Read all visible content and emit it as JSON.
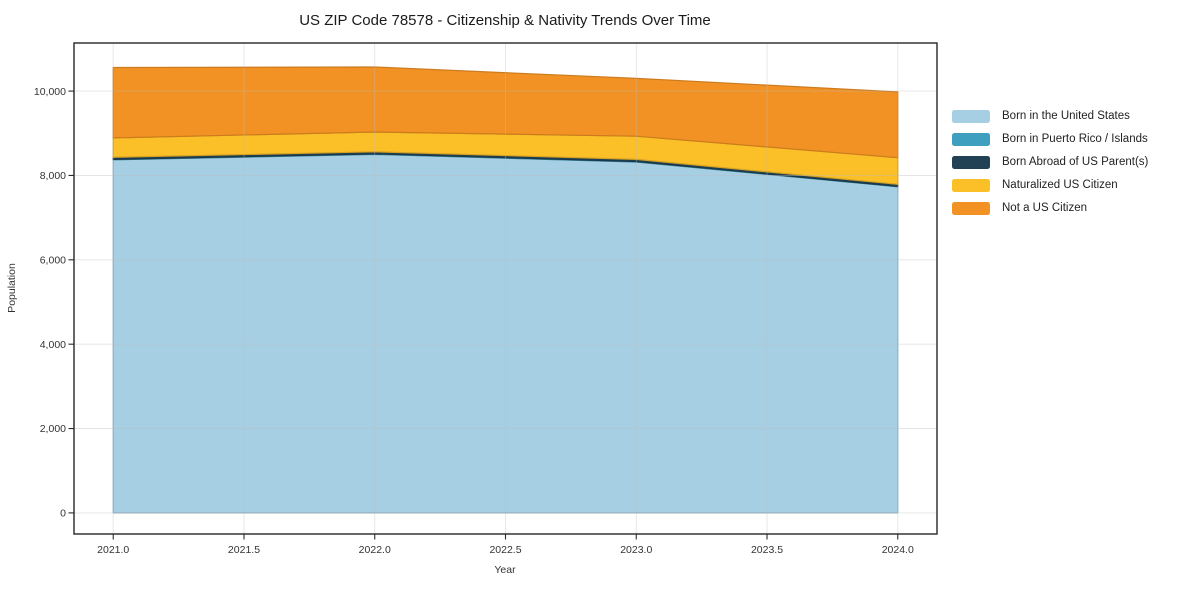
{
  "chart_data": {
    "type": "area",
    "stacked": true,
    "title": "US ZIP Code 78578 - Citizenship & Nativity Trends Over Time",
    "xlabel": "Year",
    "ylabel": "Population",
    "x": [
      2021,
      2022,
      2023,
      2024
    ],
    "series": [
      {
        "name": "Born in the United States",
        "color": "#a6cfe4",
        "values": [
          8370,
          8500,
          8320,
          7730
        ]
      },
      {
        "name": "Born in Puerto Rico / Islands",
        "color": "#3ea0be",
        "values": [
          10,
          10,
          10,
          10
        ]
      },
      {
        "name": "Born Abroad of US Parent(s)",
        "color": "#204254",
        "values": [
          50,
          50,
          50,
          50
        ]
      },
      {
        "name": "Naturalized US Citizen",
        "color": "#fbbf28",
        "values": [
          460,
          470,
          550,
          630
        ]
      },
      {
        "name": "Not a US Citizen",
        "color": "#f39224",
        "values": [
          1670,
          1540,
          1370,
          1560
        ]
      }
    ],
    "totals": [
      10560,
      10570,
      10300,
      9980
    ],
    "xlim": [
      2020.85,
      2024.15
    ],
    "ylim": [
      -500,
      11140
    ],
    "x_ticks": {
      "values": [
        2021,
        2021.5,
        2022,
        2022.5,
        2023,
        2023.5,
        2024
      ],
      "labels": [
        "2021.0",
        "2021.5",
        "2022.0",
        "2022.5",
        "2023.0",
        "2023.5",
        "2024.0"
      ]
    },
    "y_ticks": {
      "values": [
        0,
        2000,
        4000,
        6000,
        8000,
        10000
      ],
      "labels": [
        "0",
        "2,000",
        "4,000",
        "6,000",
        "8,000",
        "10,000"
      ]
    },
    "grid": true,
    "legend_position": "right-outside"
  }
}
